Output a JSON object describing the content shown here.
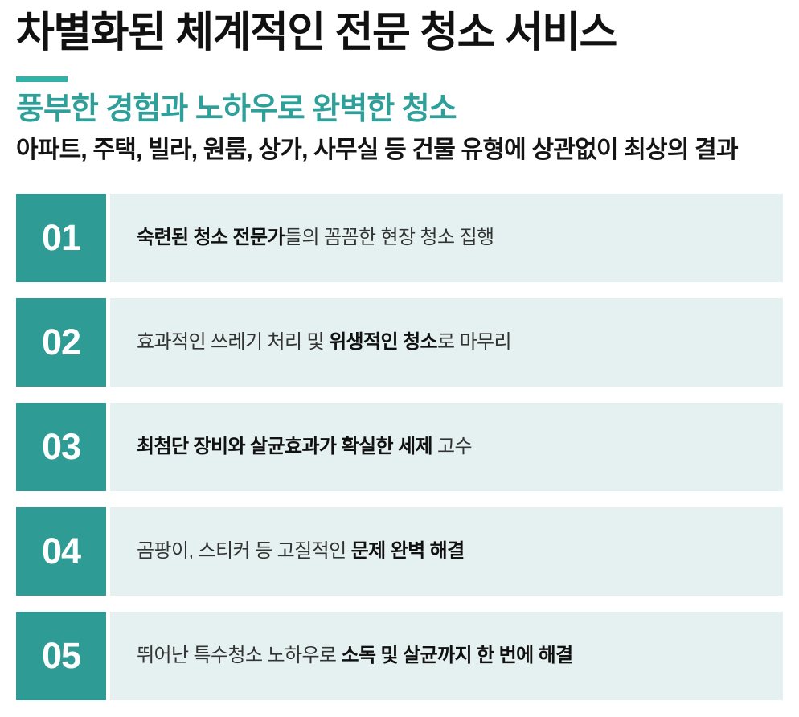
{
  "header": {
    "title": "차별화된 체계적인 전문 청소 서비스",
    "subtitle": "풍부한 경험과 노하우로 완벽한 청소",
    "description": "아파트, 주택, 빌라, 원룸, 상가, 사무실 등 건물 유형에 상관없이 최상의 결과"
  },
  "colors": {
    "divider_teal": "#2fb3a9",
    "subtitle_teal": "#2fa099",
    "number_block_teal": "#2e9c94",
    "row_background": "#e5f1f0",
    "title_color": "#111111",
    "body_text_color": "#333333"
  },
  "features": [
    {
      "number": "01",
      "segments": [
        {
          "text": "숙련된 청소 전문가",
          "bold": true
        },
        {
          "text": "들의 꼼꼼한 현장 청소 집행",
          "bold": false
        }
      ]
    },
    {
      "number": "02",
      "segments": [
        {
          "text": "효과적인 쓰레기 처리 및 ",
          "bold": false
        },
        {
          "text": "위생적인 청소",
          "bold": true
        },
        {
          "text": "로 마무리",
          "bold": false
        }
      ]
    },
    {
      "number": "03",
      "segments": [
        {
          "text": "최첨단 장비와 살균효과가 확실한 세제",
          "bold": true
        },
        {
          "text": " 고수",
          "bold": false
        }
      ]
    },
    {
      "number": "04",
      "segments": [
        {
          "text": "곰팡이, 스티커 등 고질적인 ",
          "bold": false
        },
        {
          "text": "문제 완벽 해결",
          "bold": true
        }
      ]
    },
    {
      "number": "05",
      "segments": [
        {
          "text": "뛰어난 특수청소 노하우로 ",
          "bold": false
        },
        {
          "text": "소독 및 살균까지 한 번에 해결",
          "bold": true
        }
      ]
    }
  ]
}
